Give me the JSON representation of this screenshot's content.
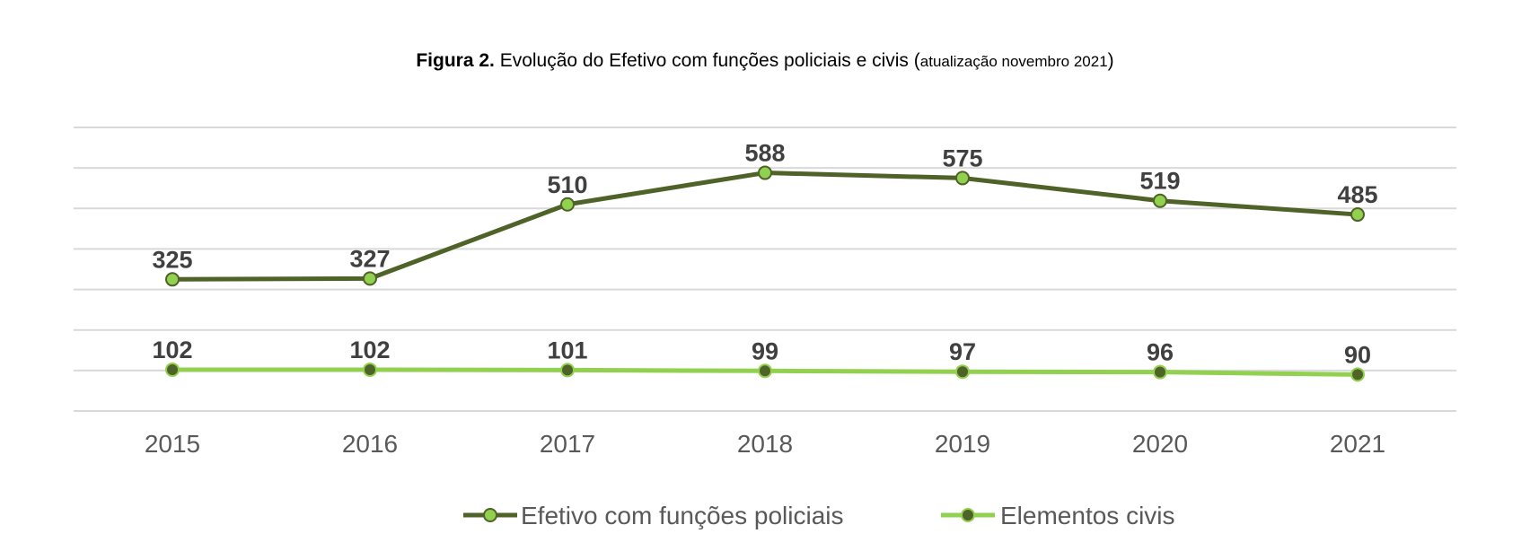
{
  "chart_data": {
    "type": "line",
    "title_prefix": "Figura 2.",
    "title_main": "Evolução do Efetivo com funções policiais e civis",
    "title_suffix_open": "(",
    "title_suffix_small": "atualização novembro 2021",
    "title_suffix_close": ")",
    "x": [
      "2015",
      "2016",
      "2017",
      "2018",
      "2019",
      "2020",
      "2021"
    ],
    "series": [
      {
        "name": "Efetivo com funções policiais",
        "values": [
          325,
          327,
          510,
          588,
          575,
          519,
          485
        ],
        "line_color": "#4f6228",
        "marker_color": "#92d050"
      },
      {
        "name": "Elementos civis",
        "values": [
          102,
          102,
          101,
          99,
          97,
          96,
          90
        ],
        "line_color": "#92d050",
        "marker_color": "#4f6228"
      }
    ],
    "xlabel": "",
    "ylabel": "",
    "ylim": [
      0,
      700
    ],
    "gridlines": true,
    "legend_position": "bottom",
    "gridline_color": "#d9d9d9"
  }
}
